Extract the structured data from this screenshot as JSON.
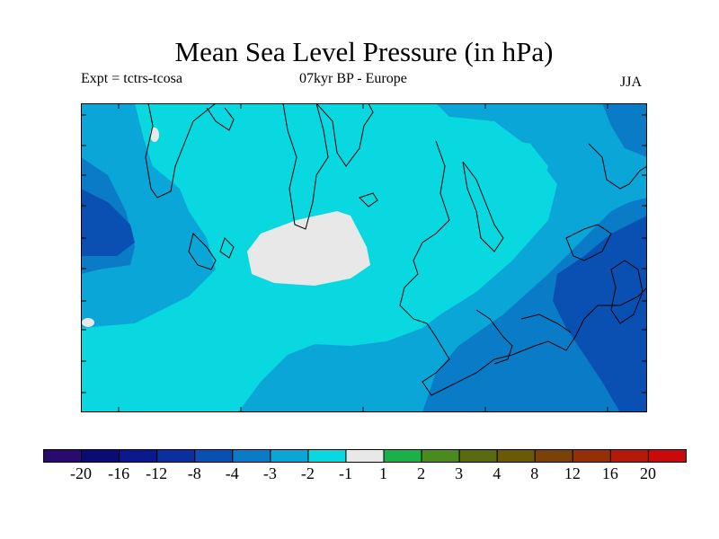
{
  "title": "Mean Sea Level Pressure (in hPa)",
  "subtitle": {
    "left": "Expt = tctrs-tcosa",
    "center": "07kyr BP - Europe",
    "right": "JJA"
  },
  "map": {
    "region": "Europe",
    "variable": "Mean Sea Level Pressure anomaly",
    "units": "hPa"
  },
  "colorbar": {
    "colors": [
      "#2a0a6e",
      "#0b0b75",
      "#0a1a8c",
      "#0a30a0",
      "#0a4fb2",
      "#0a7bc6",
      "#0aa6d8",
      "#0ad8e0",
      "#e8e8e8",
      "#1ab04a",
      "#4a8a1e",
      "#5a6a10",
      "#6a5a08",
      "#7a4208",
      "#962e08",
      "#b41a0a",
      "#c80a0a"
    ],
    "labels": [
      "-20",
      "-16",
      "-12",
      "-8",
      "-4",
      "-3",
      "-2",
      "-1",
      "1",
      "2",
      "3",
      "4",
      "8",
      "12",
      "16",
      "20"
    ]
  }
}
